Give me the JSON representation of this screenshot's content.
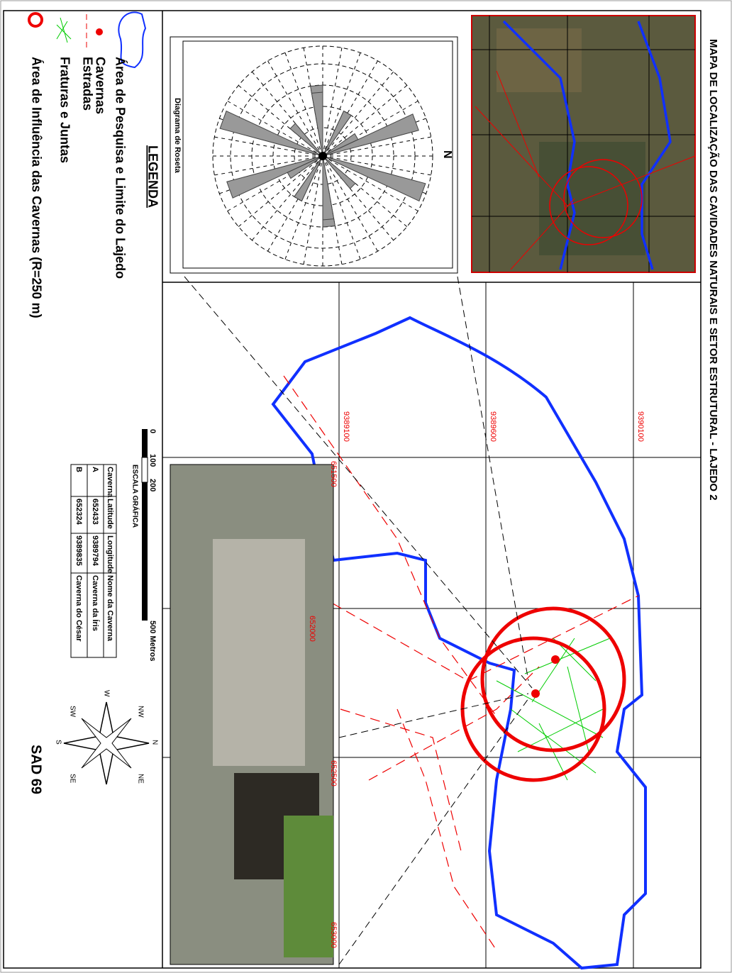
{
  "header": {
    "title": "MAPA DE LOCALIZAÇÃO  DAS CAVIDADES NATURAIS E SETOR ESTRUTURAL - LAJEDO 2"
  },
  "legend": {
    "heading": "LEGENDA",
    "items": [
      "Área de Pesquisa e Limite do Lajedo",
      "Cavernas",
      "Estradas",
      "Fraturas e Juntas",
      "Área de Influência das Cavernas (R=250 m)"
    ]
  },
  "rose": {
    "title": "Diagrama de Roseta",
    "north": "N"
  },
  "scale": {
    "ticks": [
      "0",
      "100",
      "200"
    ],
    "end": "500 Metros",
    "caption": "ESCALA GRÁFICA"
  },
  "table": {
    "header": [
      "Caverna",
      "Latitude",
      "Longitude",
      "Nome da Caverna"
    ],
    "rows": [
      [
        "A",
        "652433",
        "9389794",
        "Caverna da Íris"
      ],
      [
        "B",
        "652324",
        "9389835",
        "Caverna do César"
      ]
    ]
  },
  "compass": {
    "labels": [
      "N",
      "NE",
      "SE",
      "S",
      "SW",
      "W",
      "NW"
    ]
  },
  "datum": "SAD 69",
  "grid": {
    "northings": [
      "9390100",
      "9389600",
      "9389100"
    ],
    "eastings": [
      "651500",
      "652000",
      "652500",
      "653000"
    ]
  }
}
